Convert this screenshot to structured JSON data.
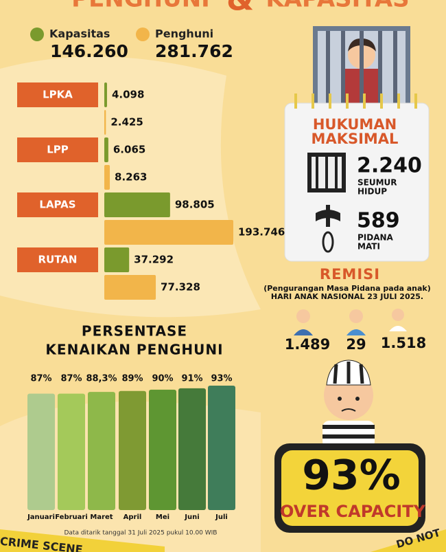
{
  "header": {
    "title_left": "PENGHUNI",
    "ampersand": "&",
    "title_right": "KAPASITAS"
  },
  "chart_data": [
    {
      "type": "bar",
      "orientation": "horizontal",
      "categories": [
        "LPKA",
        "LPP",
        "LAPAS",
        "RUTAN"
      ],
      "totals": [
        "146.260",
        "281.762"
      ],
      "series": [
        {
          "name": "Kapasitas",
          "color": "#7a9a2d",
          "values": [
            4098,
            6065,
            98805,
            37292
          ],
          "value_labels": [
            "4.098",
            "6.065",
            "98.805",
            "37.292"
          ]
        },
        {
          "name": "Penghuni",
          "color": "#f2b54a",
          "values": [
            2425,
            8263,
            193746,
            77328
          ],
          "value_labels": [
            "2.425",
            "8.263",
            "193.746",
            "77.328"
          ]
        }
      ]
    },
    {
      "type": "bar",
      "orientation": "vertical",
      "title": [
        "PERSENTASE",
        "KENAIKAN PENGHUNI"
      ],
      "categories": [
        "Januari",
        "Februari",
        "Maret",
        "April",
        "Mei",
        "Juni",
        "Juli"
      ],
      "values": [
        87,
        87,
        88.3,
        89,
        90,
        91,
        93
      ],
      "value_labels": [
        "87%",
        "87%",
        "88,3%",
        "89%",
        "90%",
        "91%",
        "93%"
      ],
      "colors": [
        "#aecb8e",
        "#a4c95a",
        "#8eb84a",
        "#7f9a33",
        "#5e9632",
        "#457a3a",
        "#3f7d5a"
      ],
      "note": "Data ditarik tanggal  31 Juli 2025 pukul 10.00 WIB"
    }
  ],
  "hukuman": {
    "title": [
      "HUKUMAN",
      "MAKSIMAL"
    ],
    "items": [
      {
        "value": "2.240",
        "label": [
          "SEUMUR",
          "HIDUP"
        ]
      },
      {
        "value": "589",
        "label": [
          "PIDANA",
          "MATI"
        ]
      }
    ]
  },
  "remisi": {
    "title": "REMISI",
    "subtitle": "(Pengurangan Masa Pidana pada anak)",
    "date": "HARI ANAK NASIONAL 23 JULI 2025.",
    "figures": [
      "1.489",
      "29",
      "1.518"
    ]
  },
  "capacity": {
    "value": "93%",
    "label": "OVER CAPACITY"
  },
  "tape": [
    "CRIME SCENE",
    "DO NOT"
  ]
}
